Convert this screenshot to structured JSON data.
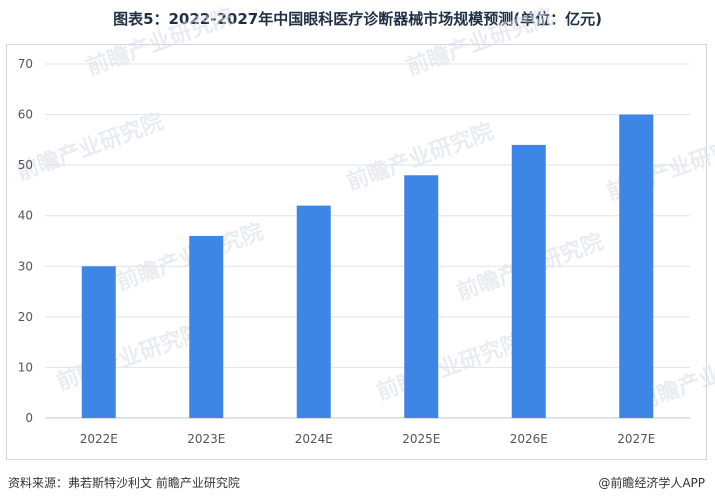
{
  "header": {
    "title": "图表5：2022-2027年中国眼科医疗诊断器械市场规模预测(单位：亿元)"
  },
  "footer": {
    "source": "资料来源：弗若斯特沙利文 前瞻产业研究院",
    "brand": "@前瞻经济学人APP"
  },
  "watermark": {
    "text": "前瞻产业研究院"
  },
  "colors": {
    "bar": "#3d86e6",
    "grid": "#dfe3e8",
    "axis": "#bfc5cc"
  },
  "chart_data": {
    "type": "bar",
    "categories": [
      "2022E",
      "2023E",
      "2024E",
      "2025E",
      "2026E",
      "2027E"
    ],
    "values": [
      30,
      36,
      42,
      48,
      54,
      60
    ],
    "title": "图表5：2022-2027年中国眼科医疗诊断器械市场规模预测(单位：亿元)",
    "xlabel": "",
    "ylabel": "",
    "ylim": [
      0,
      70
    ],
    "yticks": [
      0,
      10,
      20,
      30,
      40,
      50,
      60,
      70
    ],
    "grid": true,
    "legend": "none"
  }
}
